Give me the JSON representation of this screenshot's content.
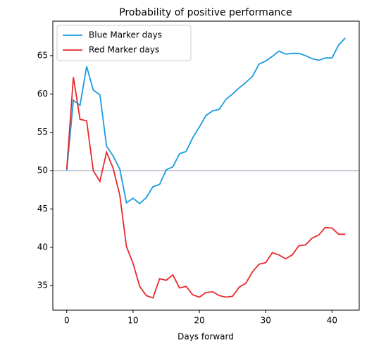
{
  "chart_data": {
    "type": "line",
    "title": "Probability of positive performance",
    "xlabel": "Days forward",
    "x": [
      0,
      1,
      2,
      3,
      4,
      5,
      6,
      7,
      8,
      9,
      10,
      11,
      12,
      13,
      14,
      15,
      16,
      17,
      18,
      19,
      20,
      21,
      22,
      23,
      24,
      25,
      26,
      27,
      28,
      29,
      30,
      31,
      32,
      33,
      34,
      35,
      36,
      37,
      38,
      39,
      40,
      41,
      42
    ],
    "series": [
      {
        "name": "Blue Marker days",
        "color": "#1a9be0",
        "values": [
          50,
          59.2,
          58.5,
          63.6,
          60.5,
          59.9,
          53.2,
          51.9,
          50.2,
          45.8,
          46.4,
          45.7,
          46.5,
          47.9,
          48.2,
          50.1,
          50.5,
          52.2,
          52.5,
          54.3,
          55.7,
          57.2,
          57.8,
          58.0,
          59.3,
          60.0,
          60.8,
          61.5,
          62.3,
          63.9,
          64.3,
          64.9,
          65.6,
          65.2,
          65.3,
          65.3,
          65.0,
          64.6,
          64.4,
          64.7,
          64.7,
          66.4,
          67.3
        ]
      },
      {
        "name": "Red Marker days",
        "color": "#e8292b",
        "values": [
          50.2,
          62.2,
          56.7,
          56.5,
          50.0,
          48.6,
          52.4,
          50.3,
          46.8,
          40.1,
          37.9,
          34.9,
          33.7,
          33.4,
          35.9,
          35.7,
          36.4,
          34.7,
          34.9,
          33.8,
          33.5,
          34.1,
          34.2,
          33.7,
          33.5,
          33.6,
          34.8,
          35.3,
          36.8,
          37.8,
          38.0,
          39.3,
          39.0,
          38.5,
          39.0,
          40.2,
          40.3,
          41.2,
          41.6,
          42.6,
          42.5,
          41.7,
          41.7
        ]
      }
    ],
    "reference_line": 50,
    "reference_color": "#b0b8c8",
    "xlim": [
      -2.1,
      44.1
    ],
    "xticks": [
      0,
      10,
      20,
      30,
      40
    ],
    "ylim": [
      31.8,
      69.5
    ],
    "yticks": [
      35,
      40,
      45,
      50,
      55,
      60,
      65
    ],
    "legend": "upper left"
  }
}
